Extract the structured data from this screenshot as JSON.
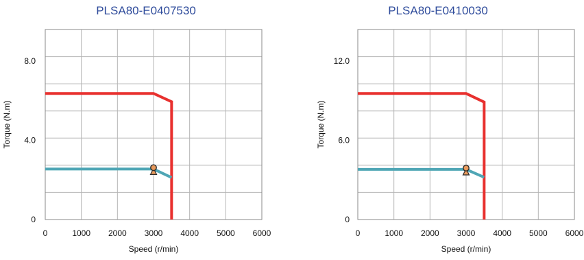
{
  "chart_data": [
    {
      "type": "line",
      "title": "PLSA80-E0407530",
      "xlabel": "Speed (r/min)",
      "ylabel": "Torque (N.m)",
      "xlim": [
        0,
        6000
      ],
      "ylim": [
        0,
        9.6
      ],
      "x_ticks": [
        0,
        1000,
        2000,
        3000,
        4000,
        5000,
        6000
      ],
      "x_tick_labels": [
        "0",
        "1000",
        "2000",
        "3000",
        "4000",
        "5000",
        "6000"
      ],
      "y_ticks": [
        0,
        4.0,
        8.0
      ],
      "y_tick_labels": [
        "0",
        "4.0",
        "8.0"
      ],
      "grid": true,
      "series": [
        {
          "color": "#e8302e",
          "x": [
            0,
            3000,
            3500,
            3500
          ],
          "y": [
            6.37,
            6.37,
            5.95,
            0
          ]
        },
        {
          "color": "#4fa6b5",
          "x": [
            0,
            3000,
            3500
          ],
          "y": [
            2.55,
            2.55,
            2.12
          ]
        }
      ],
      "rated_point": {
        "x": 3000,
        "y": 2.62,
        "color": "#e89a5c"
      }
    },
    {
      "type": "line",
      "title": "PLSA80-E0410030",
      "xlabel": "Speed (r/min)",
      "ylabel": "Torque (N.m)",
      "xlim": [
        0,
        6000
      ],
      "ylim": [
        0,
        14.4
      ],
      "x_ticks": [
        0,
        1000,
        2000,
        3000,
        4000,
        5000,
        6000
      ],
      "x_tick_labels": [
        "0",
        "1000",
        "2000",
        "3000",
        "4000",
        "5000",
        "6000"
      ],
      "y_ticks": [
        0,
        6.0,
        12.0
      ],
      "y_tick_labels": [
        "0",
        "6.0",
        "12.0"
      ],
      "grid": true,
      "series": [
        {
          "color": "#e8302e",
          "x": [
            0,
            3000,
            3500,
            3500
          ],
          "y": [
            9.55,
            9.55,
            8.9,
            0
          ]
        },
        {
          "color": "#4fa6b5",
          "x": [
            0,
            3000,
            3500
          ],
          "y": [
            3.8,
            3.8,
            3.2
          ]
        }
      ],
      "rated_point": {
        "x": 3000,
        "y": 3.9,
        "color": "#e89a5c"
      }
    }
  ]
}
